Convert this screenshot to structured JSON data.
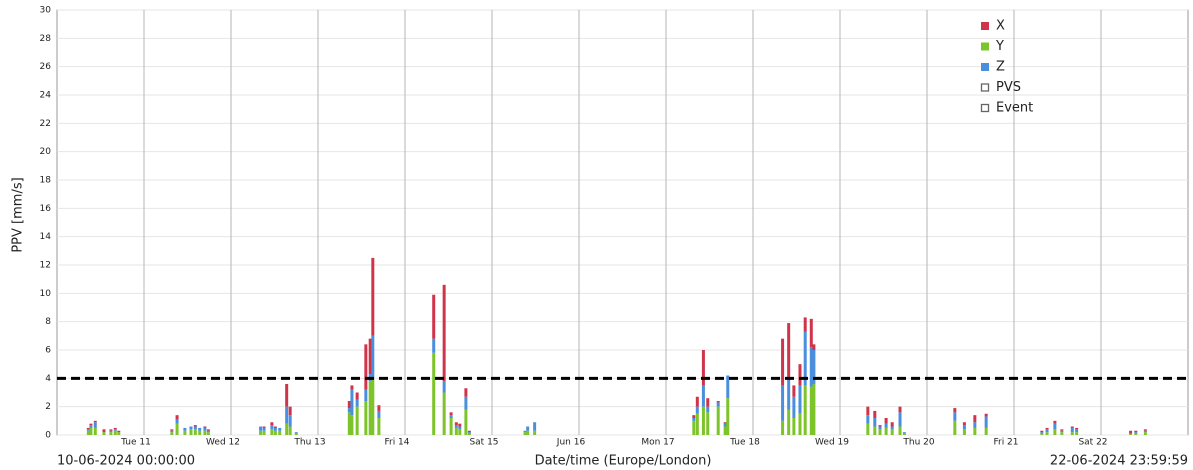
{
  "chart_data": {
    "type": "stacked-bar",
    "y_label": "PPV [mm/s]",
    "x_label": "Date/time (Europe/London)",
    "start_label": "10-06-2024 00:00:00",
    "end_label": "22-06-2024 23:59:59",
    "xlim": [
      0,
      13
    ],
    "xticks": [
      {
        "value": 1,
        "label": "Tue 11"
      },
      {
        "value": 2,
        "label": "Wed 12"
      },
      {
        "value": 3,
        "label": "Thu 13"
      },
      {
        "value": 4,
        "label": "Fri 14"
      },
      {
        "value": 5,
        "label": "Sat 15"
      },
      {
        "value": 6,
        "label": "Jun 16"
      },
      {
        "value": 7,
        "label": "Mon 17"
      },
      {
        "value": 8,
        "label": "Tue 18"
      },
      {
        "value": 9,
        "label": "Wed 19"
      },
      {
        "value": 10,
        "label": "Thu 20"
      },
      {
        "value": 11,
        "label": "Fri 21"
      },
      {
        "value": 12,
        "label": "Sat 22"
      }
    ],
    "ylim": [
      0,
      30
    ],
    "yticks": [
      0,
      2,
      4,
      6,
      8,
      10,
      12,
      14,
      16,
      18,
      20,
      22,
      24,
      26,
      28,
      30
    ],
    "grid": true,
    "threshold": 4,
    "x": [
      0.36,
      0.39,
      0.44,
      0.54,
      0.62,
      0.67,
      0.71,
      1.32,
      1.38,
      1.47,
      1.54,
      1.59,
      1.64,
      1.7,
      1.74,
      2.34,
      2.38,
      2.47,
      2.51,
      2.56,
      2.64,
      2.68,
      2.75,
      3.36,
      3.39,
      3.45,
      3.55,
      3.6,
      3.63,
      3.7,
      4.33,
      4.45,
      4.53,
      4.59,
      4.63,
      4.7,
      4.74,
      5.38,
      5.41,
      5.49,
      7.32,
      7.36,
      7.43,
      7.48,
      7.6,
      7.68,
      7.71,
      8.34,
      8.41,
      8.47,
      8.54,
      8.6,
      8.67,
      8.7,
      9.32,
      9.4,
      9.46,
      9.53,
      9.6,
      9.69,
      9.74,
      10.32,
      10.43,
      10.55,
      10.68,
      11.32,
      11.38,
      11.47,
      11.55,
      11.67,
      11.72,
      12.34,
      12.4,
      12.51
    ],
    "series": [
      {
        "name": "X",
        "color": "#d0344a",
        "values": [
          0.1,
          0.1,
          0.1,
          0.2,
          0.1,
          0.1,
          0.1,
          0.1,
          0.3,
          0,
          0,
          0.1,
          0,
          0.1,
          0.1,
          0,
          0.1,
          0.2,
          0.1,
          0,
          1.6,
          0.6,
          0,
          0.5,
          0.3,
          0.5,
          3.2,
          2.5,
          5.5,
          0.4,
          3.1,
          6.8,
          0.2,
          0.2,
          0.2,
          0.6,
          0.1,
          0,
          0,
          0,
          0.2,
          0.7,
          2.5,
          0.6,
          0.1,
          0.1,
          0,
          3.3,
          3.9,
          0.8,
          1.5,
          1.0,
          2.0,
          0.4,
          0.6,
          0.5,
          0.1,
          0.4,
          0.3,
          0.4,
          0,
          0.3,
          0.2,
          0.5,
          0.2,
          0.1,
          0.1,
          0.2,
          0.1,
          0.1,
          0.1,
          0.2,
          0.1,
          0.1
        ]
      },
      {
        "name": "Y",
        "color": "#7dc42a",
        "values": [
          0.3,
          0.5,
          0.5,
          0.2,
          0.2,
          0.3,
          0.2,
          0.2,
          0.8,
          0.3,
          0.4,
          0.4,
          0.3,
          0.3,
          0.2,
          0.3,
          0.3,
          0.4,
          0.3,
          0.3,
          0.8,
          0.6,
          0.1,
          1.6,
          1.4,
          2.0,
          2.4,
          3.8,
          4.0,
          1.2,
          5.8,
          3.0,
          1.2,
          0.5,
          0.4,
          1.8,
          0.1,
          0.2,
          0.3,
          0.3,
          1.0,
          1.5,
          2.0,
          1.6,
          2.0,
          0.6,
          2.6,
          1.0,
          1.8,
          1.2,
          1.5,
          3.5,
          3.4,
          3.6,
          0.8,
          0.6,
          0.4,
          0.5,
          0.4,
          0.6,
          0.1,
          1.0,
          0.4,
          0.5,
          0.5,
          0.1,
          0.2,
          0.4,
          0.2,
          0.2,
          0.2,
          0.1,
          0.1,
          0.2
        ]
      },
      {
        "name": "Z",
        "color": "#4a8fdd",
        "values": [
          0.1,
          0.2,
          0.4,
          0,
          0.1,
          0.1,
          0,
          0.1,
          0.3,
          0.2,
          0.2,
          0.2,
          0.2,
          0.2,
          0.1,
          0.3,
          0.2,
          0.3,
          0.2,
          0.2,
          1.2,
          0.8,
          0.1,
          0.3,
          1.8,
          0.5,
          0.8,
          0.5,
          3.0,
          0.5,
          1.0,
          0.8,
          0.2,
          0.2,
          0.2,
          0.9,
          0.1,
          0.1,
          0.3,
          0.6,
          0.2,
          0.5,
          1.5,
          0.4,
          0.3,
          0.2,
          1.6,
          2.5,
          2.2,
          1.5,
          2.0,
          3.8,
          2.8,
          2.4,
          0.6,
          0.6,
          0.2,
          0.3,
          0.2,
          1.0,
          0.1,
          0.6,
          0.3,
          0.4,
          0.8,
          0.1,
          0.2,
          0.4,
          0.1,
          0.3,
          0.2,
          0,
          0.1,
          0.1
        ]
      }
    ],
    "legend_extra": [
      {
        "name": "PVS",
        "color": "#f4a6c4"
      },
      {
        "name": "Event",
        "color": "#b0b0b0"
      }
    ]
  }
}
